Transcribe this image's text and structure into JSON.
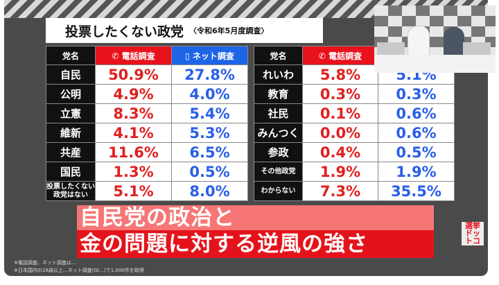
{
  "title": {
    "main": "投票したくない政党",
    "sub": "〈令和6年5月度調査〉"
  },
  "headers": {
    "party": "党名",
    "phone": "電話調査",
    "net": "ネット調査"
  },
  "left_rows": [
    {
      "party": "自民",
      "phone": "50.9%",
      "net": "27.8%"
    },
    {
      "party": "公明",
      "phone": "4.9%",
      "net": "4.0%"
    },
    {
      "party": "立憲",
      "phone": "8.3%",
      "net": "5.4%"
    },
    {
      "party": "維新",
      "phone": "4.1%",
      "net": "5.3%"
    },
    {
      "party": "共産",
      "phone": "11.6%",
      "net": "6.5%"
    },
    {
      "party": "国民",
      "phone": "1.3%",
      "net": "0.5%"
    },
    {
      "party": "投票したくない政党はない",
      "phone": "5.1%",
      "net": "8.0%"
    }
  ],
  "right_rows": [
    {
      "party": "れいわ",
      "phone": "5.8%",
      "net": "5.1%"
    },
    {
      "party": "教育",
      "phone": "0.3%",
      "net": "0.3%"
    },
    {
      "party": "社民",
      "phone": "0.1%",
      "net": "0.6%"
    },
    {
      "party": "みんつく",
      "phone": "0.0%",
      "net": "0.6%"
    },
    {
      "party": "参政",
      "phone": "0.4%",
      "net": "0.5%"
    },
    {
      "party": "その他政党",
      "phone": "1.9%",
      "net": "1.9%"
    },
    {
      "party": "わからない",
      "phone": "7.3%",
      "net": "35.5%"
    }
  ],
  "caption": {
    "line1": "自民党の政治と",
    "line2": "金の問題に対する逆風の強さ"
  },
  "notes": [
    "※電話調査、ネット調査は…",
    "※日本国内の18歳以上…ネット調査(GI…)で1,000件を取得"
  ],
  "logo": "選挙ドットコム"
}
